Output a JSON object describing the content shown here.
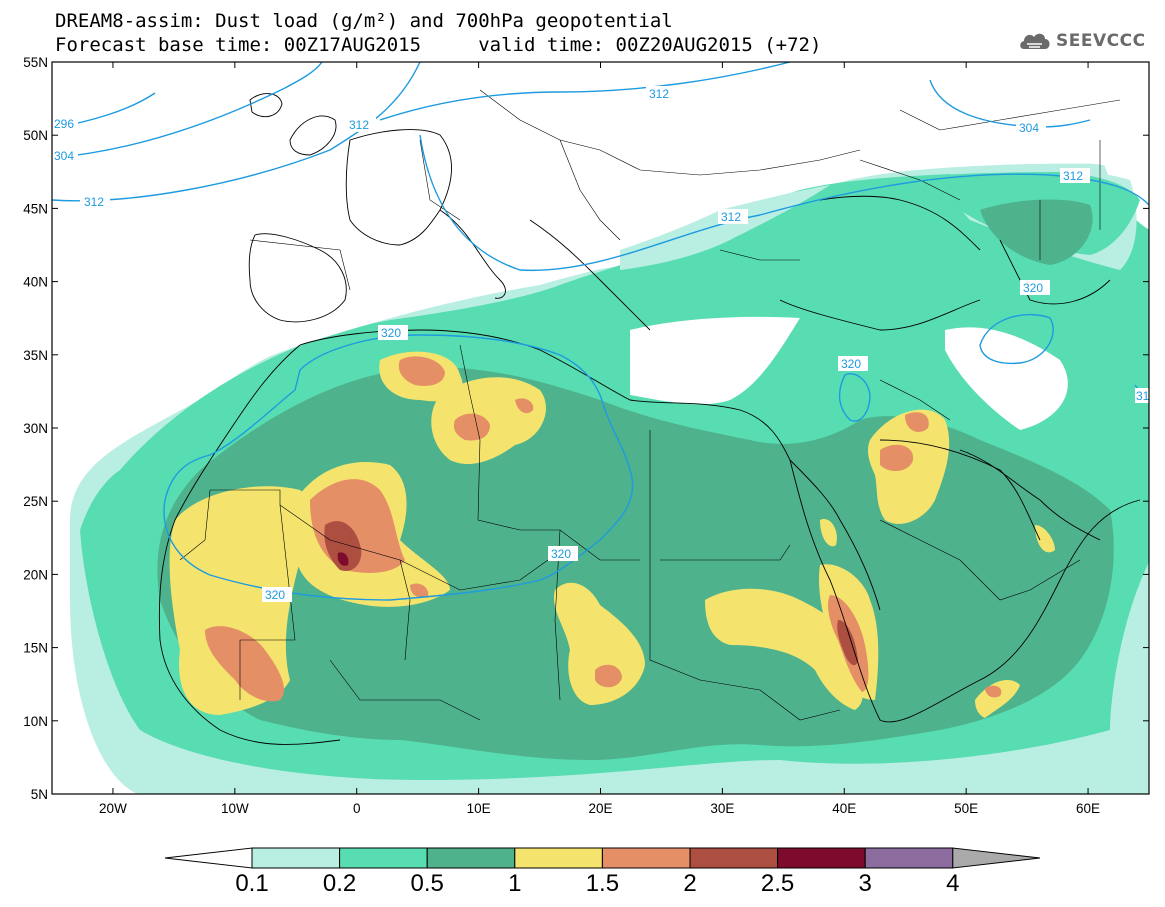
{
  "header": {
    "title_line1": "DREAM8-assim: Dust load (g/m²) and 700hPa geopotential",
    "title_line2": "Forecast base time: 00Z17AUG2015     valid time: 00Z20AUG2015 (+72)",
    "logo_text": "SEEVCCC"
  },
  "map": {
    "lon_range": [
      -25,
      65
    ],
    "lat_range": [
      5,
      55
    ],
    "lat_ticks": [
      "55N",
      "50N",
      "45N",
      "40N",
      "35N",
      "30N",
      "25N",
      "20N",
      "15N",
      "10N",
      "5N"
    ],
    "lon_ticks": [
      "20W",
      "10W",
      "0",
      "10E",
      "20E",
      "30E",
      "40E",
      "50E",
      "60E"
    ],
    "contour_labels": [
      "296",
      "304",
      "312",
      "312",
      "312",
      "312",
      "312",
      "304",
      "320",
      "320",
      "320",
      "320",
      "320",
      "31"
    ]
  },
  "colorbar": {
    "levels": [
      "0.1",
      "0.2",
      "0.5",
      "1",
      "1.5",
      "2",
      "2.5",
      "3",
      "4"
    ],
    "colors": [
      "#ffffff",
      "#b9eee3",
      "#58dcb1",
      "#4eb28d",
      "#f4e46e",
      "#e58f67",
      "#ac4e40",
      "#7e0a2e",
      "#8c6c9e",
      "#aaaaaa"
    ]
  }
}
